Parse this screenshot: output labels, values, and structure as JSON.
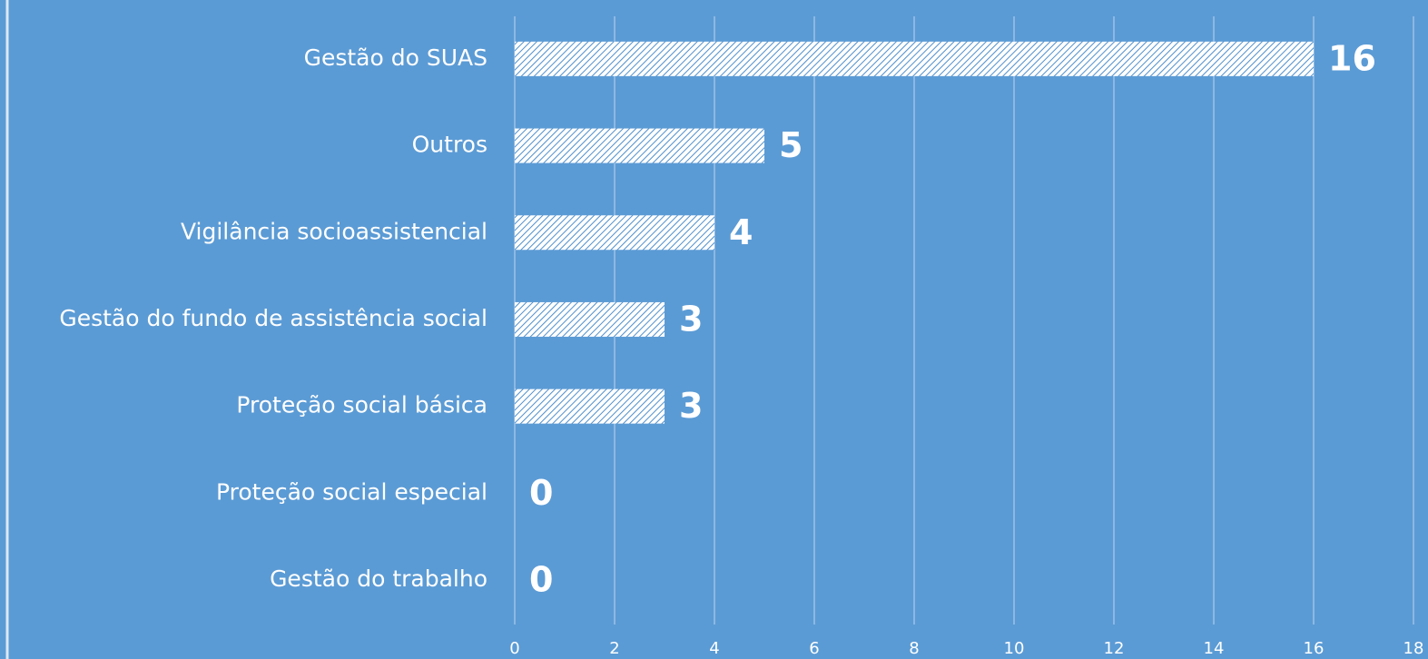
{
  "chart_data": {
    "type": "barh",
    "categories": [
      "Gestão do SUAS",
      "Outros",
      "Vigilância socioassistencial",
      "Gestão do fundo de assistência social",
      "Proteção social básica",
      "Proteção social especial",
      "Gestão do trabalho"
    ],
    "values": [
      16,
      5,
      4,
      3,
      3,
      0,
      0
    ],
    "color": "#ffffff",
    "hatch_color": "#4f8fcc",
    "xlim": [
      0,
      18
    ],
    "xticks": [
      0,
      2,
      4,
      6,
      8,
      10,
      12,
      14,
      16,
      18
    ],
    "grid": true
  }
}
